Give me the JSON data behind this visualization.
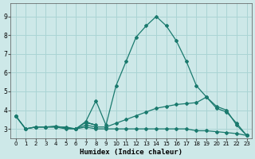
{
  "xlabel": "Humidex (Indice chaleur)",
  "ylabel": "",
  "background_color": "#cde8e8",
  "grid_color": "#aad4d4",
  "line_color": "#1a7a6e",
  "xlim": [
    -0.5,
    23.5
  ],
  "ylim": [
    2.5,
    9.7
  ],
  "x_ticks": [
    0,
    1,
    2,
    3,
    4,
    5,
    6,
    7,
    8,
    9,
    10,
    11,
    12,
    13,
    14,
    15,
    16,
    17,
    18,
    19,
    20,
    21,
    22,
    23
  ],
  "y_ticks": [
    3,
    4,
    5,
    6,
    7,
    8,
    9
  ],
  "series": [
    {
      "x": [
        0,
        1,
        2,
        3,
        4,
        5,
        6,
        7,
        8,
        9,
        10,
        11,
        12,
        13,
        14,
        15,
        16,
        17,
        18,
        19,
        20,
        21,
        22,
        23
      ],
      "y": [
        3.7,
        3.0,
        3.1,
        3.1,
        3.1,
        3.1,
        3.0,
        3.4,
        4.5,
        3.2,
        5.3,
        6.6,
        7.9,
        8.5,
        9.0,
        8.5,
        7.7,
        6.6,
        5.3,
        4.7,
        4.2,
        4.0,
        3.2,
        2.65
      ]
    },
    {
      "x": [
        0,
        1,
        2,
        3,
        4,
        5,
        6,
        7,
        8,
        9,
        10,
        11,
        12,
        13,
        14,
        15,
        16,
        17,
        18,
        19,
        20,
        21,
        22,
        23
      ],
      "y": [
        3.7,
        3.0,
        3.1,
        3.1,
        3.15,
        3.05,
        3.0,
        3.2,
        3.1,
        3.1,
        3.3,
        3.5,
        3.7,
        3.9,
        4.1,
        4.2,
        4.3,
        4.35,
        4.4,
        4.7,
        4.1,
        3.9,
        3.3,
        2.65
      ]
    },
    {
      "x": [
        0,
        1,
        2,
        3,
        4,
        5,
        6,
        7,
        8,
        9,
        10,
        11,
        12,
        13,
        14,
        15,
        16,
        17,
        18,
        19,
        20,
        21,
        22,
        23
      ],
      "y": [
        3.7,
        3.0,
        3.1,
        3.1,
        3.1,
        3.0,
        3.0,
        3.1,
        3.0,
        3.0,
        3.0,
        3.0,
        3.0,
        3.0,
        3.0,
        3.0,
        3.0,
        3.0,
        2.9,
        2.9,
        2.85,
        2.8,
        2.75,
        2.65
      ]
    },
    {
      "x": [
        6,
        7,
        8,
        7
      ],
      "y": [
        3.0,
        3.35,
        3.2,
        3.35
      ]
    }
  ]
}
